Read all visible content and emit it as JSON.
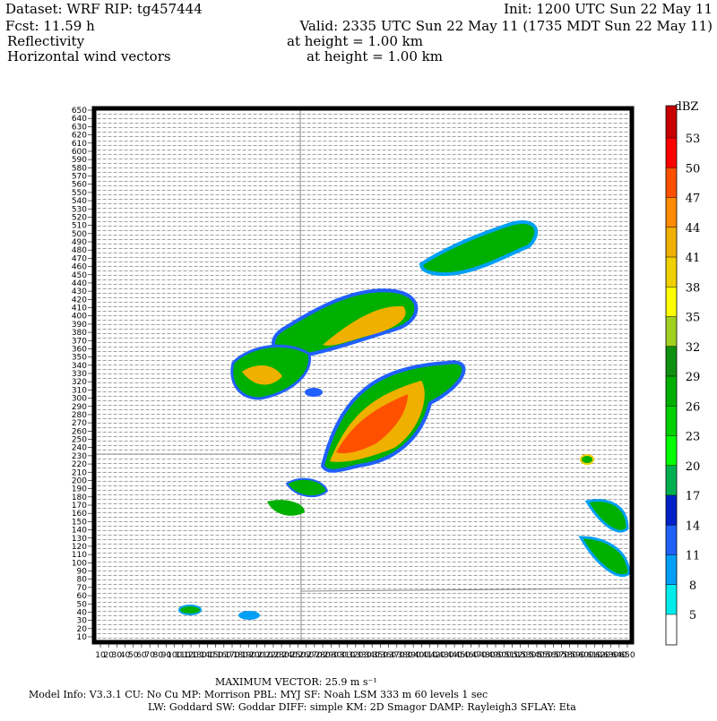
{
  "header": {
    "dataset": "Dataset: WRF  RIP: tg457444",
    "init": "Init: 1200 UTC Sun 22 May 11",
    "fcst": "Fcst:   11.59 h",
    "valid": "Valid: 2335 UTC Sun 22 May 11 (1735 MDT Sun 22 May 11)",
    "field1": "Reflectivity",
    "field1_height": "at height =   1.00 km",
    "field2": "Horizontal wind vectors",
    "field2_height": "at height =   1.00 km"
  },
  "axes": {
    "yticks": [
      10,
      20,
      30,
      40,
      50,
      60,
      70,
      80,
      90,
      100,
      110,
      120,
      130,
      140,
      150,
      160,
      170,
      180,
      190,
      200,
      210,
      220,
      230,
      240,
      250,
      260,
      270,
      280,
      290,
      300,
      310,
      320,
      330,
      340,
      350,
      360,
      370,
      380,
      390,
      400,
      410,
      420,
      430,
      440,
      450,
      460,
      470,
      480,
      490,
      500,
      510,
      520,
      530,
      540,
      550,
      560,
      570,
      580,
      590,
      600,
      610,
      620,
      630,
      640,
      650
    ],
    "xticks": [
      10,
      20,
      30,
      40,
      50,
      60,
      70,
      80,
      90,
      100,
      110,
      120,
      130,
      140,
      150,
      160,
      170,
      180,
      190,
      200,
      210,
      220,
      230,
      240,
      250,
      260,
      270,
      280,
      290,
      300,
      310,
      320,
      330,
      340,
      350,
      360,
      370,
      380,
      390,
      400,
      410,
      420,
      430,
      440,
      450,
      460,
      470,
      480,
      490,
      500,
      510,
      520,
      530,
      540,
      550,
      560,
      570,
      580,
      590,
      600,
      610,
      620,
      630,
      640,
      650
    ]
  },
  "colorbar": {
    "unit": "dBZ",
    "levels": [
      5,
      8,
      11,
      14,
      17,
      20,
      23,
      26,
      29,
      32,
      35,
      38,
      41,
      44,
      47,
      50,
      53
    ],
    "colors": [
      "#ffffff",
      "#00ecec",
      "#01a0f6",
      "#2060ff",
      "#0020c8",
      "#00b050",
      "#00ff00",
      "#00d000",
      "#00b000",
      "#109010",
      "#a0d020",
      "#ffff00",
      "#f0d000",
      "#f0b000",
      "#ff8c00",
      "#ff5000",
      "#ff0000",
      "#c80000"
    ]
  },
  "footer": {
    "max_vector": "MAXIMUM VECTOR:  25.9 m s⁻¹",
    "model_info_1": "Model Info: V3.3.1    CU: No Cu    MP: Morrison     PBL: MYJ      SF: Noah LSM     333 m    60 levels     1 sec",
    "model_info_2": "LW: Goddard SW: Goddar DIFF: simple KM: 2D Smagor DAMP: Rayleigh3  SFLAY: Eta"
  }
}
